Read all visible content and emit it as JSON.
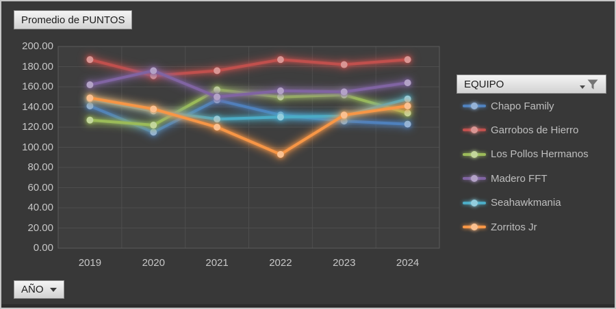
{
  "filters": {
    "value_field_button": "Promedio de PUNTOS",
    "axis_field_button": "AÑO",
    "legend_field_button": "EQUIPO"
  },
  "chart_data": {
    "type": "line",
    "title": "Promedio de PUNTOS",
    "xlabel": "AÑO",
    "ylabel": "Promedio de PUNTOS",
    "ylim": [
      0,
      200
    ],
    "y_tick_step": 20,
    "y_tick_labels": [
      "200.00",
      "180.00",
      "160.00",
      "140.00",
      "120.00",
      "100.00",
      "80.00",
      "60.00",
      "40.00",
      "20.00",
      "0.00"
    ],
    "grid": true,
    "legend_position": "right",
    "categories": [
      "2019",
      "2020",
      "2021",
      "2022",
      "2023",
      "2024"
    ],
    "series": [
      {
        "name": "Chapo Family",
        "color": "#4F81BD",
        "marker_color": "#95B3D7",
        "values": [
          141,
          115,
          147,
          132,
          126,
          123
        ]
      },
      {
        "name": "Garrobos de Hierro",
        "color": "#C0504D",
        "marker_color": "#D99694",
        "values": [
          187,
          171,
          176,
          187,
          182,
          187
        ]
      },
      {
        "name": "Los Pollos Hermanos",
        "color": "#9BBB59",
        "marker_color": "#C3D69B",
        "values": [
          127,
          122,
          157,
          150,
          152,
          134
        ]
      },
      {
        "name": "Madero FFT",
        "color": "#8064A2",
        "marker_color": "#B3A2C7",
        "values": [
          162,
          176,
          150,
          156,
          155,
          164
        ]
      },
      {
        "name": "Seahawkmania",
        "color": "#4BACC6",
        "marker_color": "#93CDDD",
        "values": [
          148,
          136,
          128,
          130,
          131,
          148
        ]
      },
      {
        "name": "Zorritos Jr",
        "color": "#F79646",
        "marker_color": "#FAC090",
        "values": [
          149,
          138,
          120,
          93,
          132,
          141
        ]
      }
    ]
  },
  "colors": {
    "canvas_bg": "#383838",
    "plot_bg": "#3e3e3e",
    "gridline": "#4e4e4e",
    "plot_border": "#5c5c5c",
    "axis_text": "#c7c7c7",
    "legend_text": "#bfbfbf"
  }
}
